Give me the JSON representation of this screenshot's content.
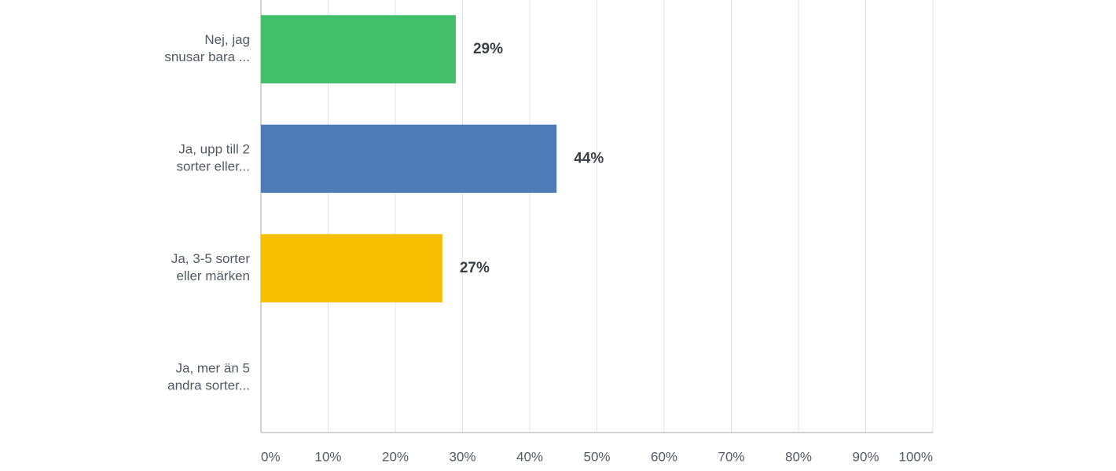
{
  "chart_data": {
    "type": "hbar",
    "categories": [
      [
        "Nej, jag",
        "snusar bara ..."
      ],
      [
        "Ja, upp till 2",
        "sorter eller..."
      ],
      [
        "Ja, 3-5 sorter",
        "eller märken"
      ],
      [
        "Ja, mer än 5",
        "andra sorter..."
      ]
    ],
    "values": [
      29,
      44,
      27,
      0
    ],
    "value_labels": [
      "29%",
      "44%",
      "27%",
      null
    ],
    "colors": [
      "#43bf6c",
      "#4e7ab5",
      "#f6bf00",
      "#e05c4c"
    ],
    "xlim": [
      0,
      100
    ],
    "xticks": [
      {
        "value": 0,
        "label": "0%"
      },
      {
        "value": 10,
        "label": "10%"
      },
      {
        "value": 20,
        "label": "20%"
      },
      {
        "value": 30,
        "label": "30%"
      },
      {
        "value": 40,
        "label": "40%"
      },
      {
        "value": 50,
        "label": "50%"
      },
      {
        "value": 60,
        "label": "60%"
      },
      {
        "value": 70,
        "label": "70%"
      },
      {
        "value": 80,
        "label": "80%"
      },
      {
        "value": 90,
        "label": "90%"
      },
      {
        "value": 100,
        "label": "100%"
      }
    ],
    "grid": true
  }
}
